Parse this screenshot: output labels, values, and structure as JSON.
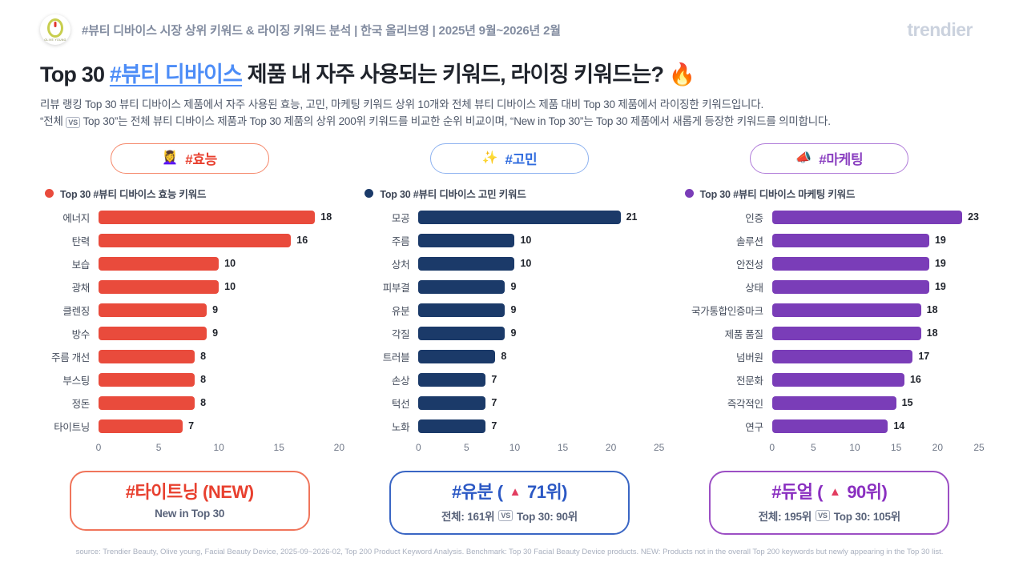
{
  "header": {
    "logo_text": "OLIVE YOUNG",
    "title": "#뷰티 디바이스 시장 상위 키워드 & 라이징 키워드 분석 | 한국 올리브영 | 2025년 9월~2026년 2월",
    "brand": "trendier"
  },
  "title": {
    "prefix": "Top 30 ",
    "highlight": "#뷰티 디바이스",
    "suffix": " 제품 내 자주 사용되는 키워드, 라이징 키워드는? ",
    "emoji": "🔥"
  },
  "description": {
    "line1": "리뷰 랭킹 Top 30 뷰티 디바이스 제품에서 자주 사용된 효능, 고민, 마케팅 키워드 상위 10개와 전체 뷰티 디바이스 제품 대비 Top 30 제품에서 라이징한 키워드입니다.",
    "line2_pre": "“전체",
    "line2_vs": "VS",
    "line2_post": "Top 30”는 전체 뷰티 디바이스 제품과 Top 30 제품의 상위 200위 키워드를 비교한 순위 비교이며, “New in Top 30”는 Top 30 제품에서 새롭게 등장한 키워드를 의미합니다."
  },
  "columns": [
    {
      "pill": {
        "emoji": "💆‍♀️",
        "label": "#효능"
      },
      "legend": "Top 30 #뷰티 디바이스 효능 키워드",
      "card": {
        "title_pre": "#타이트닝 (NEW)",
        "arrow": "",
        "title_post": "",
        "sub_pre": "New in Top 30",
        "sub_vs": "",
        "sub_post": ""
      },
      "colors": {
        "bar": "#E94B3C",
        "pill_border": "#F5886B",
        "pill_text": "#E8402F",
        "card_border": "#F0755B",
        "card_title": "#E8402F"
      }
    },
    {
      "pill": {
        "emoji": "✨",
        "label": "#고민"
      },
      "legend": "Top 30 #뷰티 디바이스 고민 키워드",
      "card": {
        "title_pre": "#유분 (",
        "arrow": "▲",
        "title_post": "71위)",
        "sub_pre": "전체: 161위",
        "sub_vs": "VS",
        "sub_post": "Top 30: 90위"
      },
      "colors": {
        "bar": "#1B3A69",
        "pill_border": "#8FB3F0",
        "pill_text": "#2F6BDE",
        "card_border": "#3A66C4",
        "card_title": "#2B58C4"
      }
    },
    {
      "pill": {
        "emoji": "📣",
        "label": "#마케팅"
      },
      "legend": "Top 30 #뷰티 디바이스 마케팅 키워드",
      "card": {
        "title_pre": "#듀얼 (",
        "arrow": "▲",
        "title_post": "90위)",
        "sub_pre": "전체: 195위",
        "sub_vs": "VS",
        "sub_post": "Top 30: 105위"
      },
      "colors": {
        "bar": "#7A3DB8",
        "pill_border": "#B07CD9",
        "pill_text": "#8A3FC0",
        "card_border": "#9C4FC4",
        "card_title": "#8A2FC0"
      }
    }
  ],
  "chart_data": [
    {
      "type": "bar",
      "orientation": "horizontal",
      "title": "#효능",
      "legend": "Top 30 #뷰티 디바이스 효능 키워드",
      "categories": [
        "에너지",
        "탄력",
        "보습",
        "광채",
        "클렌징",
        "방수",
        "주름 개선",
        "부스팅",
        "정돈",
        "타이트닝"
      ],
      "values": [
        18,
        16,
        10,
        10,
        9,
        9,
        8,
        8,
        8,
        7
      ],
      "xlim": [
        0,
        20
      ],
      "ticks": [
        0,
        5,
        10,
        15,
        20
      ],
      "color": "#E94B3C",
      "grid": false,
      "value_labels": true
    },
    {
      "type": "bar",
      "orientation": "horizontal",
      "title": "#고민",
      "legend": "Top 30 #뷰티 디바이스 고민 키워드",
      "categories": [
        "모공",
        "주름",
        "상처",
        "피부결",
        "유분",
        "각질",
        "트러블",
        "손상",
        "턱선",
        "노화"
      ],
      "values": [
        21,
        10,
        10,
        9,
        9,
        9,
        8,
        7,
        7,
        7
      ],
      "xlim": [
        0,
        25
      ],
      "ticks": [
        0,
        5,
        10,
        15,
        20,
        25
      ],
      "color": "#1B3A69",
      "grid": false,
      "value_labels": true
    },
    {
      "type": "bar",
      "orientation": "horizontal",
      "title": "#마케팅",
      "legend": "Top 30 #뷰티 디바이스 마케팅 키워드",
      "categories": [
        "인증",
        "솔루션",
        "안전성",
        "상태",
        "국가통합인증마크",
        "제품 품질",
        "넘버원",
        "전문화",
        "즉각적인",
        "연구"
      ],
      "values": [
        23,
        19,
        19,
        19,
        18,
        18,
        17,
        16,
        15,
        14
      ],
      "xlim": [
        0,
        25
      ],
      "ticks": [
        0,
        5,
        10,
        15,
        20,
        25
      ],
      "color": "#7A3DB8",
      "grid": false,
      "value_labels": true
    }
  ],
  "footer": {
    "source": "source: Trendier Beauty, Olive young, Facial Beauty Device, 2025-09~2026-02, Top 200 Product Keyword Analysis. Benchmark: Top 30 Facial Beauty Device products. NEW: Products not in the overall Top 200 keywords but newly appearing in the Top 30 list."
  }
}
